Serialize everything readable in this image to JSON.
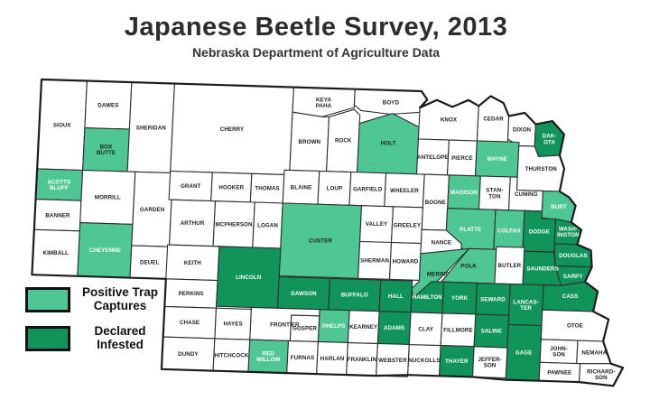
{
  "title": "Japanese Beetle Survey, 2013",
  "subtitle": "Nebraska Department of Agriculture Data",
  "colors": {
    "none": "#FFFFFF",
    "positive": "#4FC795",
    "infested": "#10945A",
    "border": "#2E2E2E",
    "state_border": "#1C1C1C",
    "label_dark": "#1D1D1D",
    "label_light": "#FFFFFF"
  },
  "legend": [
    {
      "key": "positive",
      "color": "#4FC795",
      "label_lines": [
        "Positive Trap",
        "Captures"
      ]
    },
    {
      "key": "infested",
      "color": "#10945A",
      "label_lines": [
        "Declared",
        "Infested"
      ]
    }
  ],
  "counties": [
    {
      "name": "Sioux",
      "lines": [
        "SIOUX"
      ],
      "status": "none",
      "text": "dark"
    },
    {
      "name": "Dawes",
      "lines": [
        "DAWES"
      ],
      "status": "none",
      "text": "dark"
    },
    {
      "name": "Box Butte",
      "lines": [
        "BOX",
        "BUTTE"
      ],
      "status": "positive",
      "text": "dark"
    },
    {
      "name": "Sheridan",
      "lines": [
        "SHERIDAN"
      ],
      "status": "none",
      "text": "dark"
    },
    {
      "name": "Scotts Bluff",
      "lines": [
        "SCOTTS",
        "BLUFF"
      ],
      "status": "positive",
      "text": "white"
    },
    {
      "name": "Banner",
      "lines": [
        "BANNER"
      ],
      "status": "none",
      "text": "dark"
    },
    {
      "name": "Kimball",
      "lines": [
        "KIMBALL"
      ],
      "status": "none",
      "text": "dark"
    },
    {
      "name": "Morrill",
      "lines": [
        "MORRILL"
      ],
      "status": "none",
      "text": "dark"
    },
    {
      "name": "Cheyenne",
      "lines": [
        "CHEYENNE"
      ],
      "status": "positive",
      "text": "white"
    },
    {
      "name": "Garden",
      "lines": [
        "GARDEN"
      ],
      "status": "none",
      "text": "dark"
    },
    {
      "name": "Deuel",
      "lines": [
        "DEUEL"
      ],
      "status": "none",
      "text": "dark"
    },
    {
      "name": "Cherry",
      "lines": [
        "CHERRY"
      ],
      "status": "none",
      "text": "dark"
    },
    {
      "name": "Keya Paha",
      "lines": [
        "KEYA",
        "PAHA"
      ],
      "status": "none",
      "text": "dark"
    },
    {
      "name": "Boyd",
      "lines": [
        "BOYD"
      ],
      "status": "none",
      "text": "dark"
    },
    {
      "name": "Brown",
      "lines": [
        "BROWN"
      ],
      "status": "none",
      "text": "dark"
    },
    {
      "name": "Rock",
      "lines": [
        "ROCK"
      ],
      "status": "none",
      "text": "dark"
    },
    {
      "name": "Holt",
      "lines": [
        "HOLT"
      ],
      "status": "positive",
      "text": "dark"
    },
    {
      "name": "Grant",
      "lines": [
        "GRANT"
      ],
      "status": "none",
      "text": "dark"
    },
    {
      "name": "Hooker",
      "lines": [
        "HOOKER"
      ],
      "status": "none",
      "text": "dark"
    },
    {
      "name": "Thomas",
      "lines": [
        "THOMAS"
      ],
      "status": "none",
      "text": "dark"
    },
    {
      "name": "Blaine",
      "lines": [
        "BLAINE"
      ],
      "status": "none",
      "text": "dark"
    },
    {
      "name": "Loup",
      "lines": [
        "LOUP"
      ],
      "status": "none",
      "text": "dark"
    },
    {
      "name": "Garfield",
      "lines": [
        "GARFIELD"
      ],
      "status": "none",
      "text": "dark"
    },
    {
      "name": "Wheeler",
      "lines": [
        "WHEELER"
      ],
      "status": "none",
      "text": "dark"
    },
    {
      "name": "Arthur",
      "lines": [
        "ARTHUR"
      ],
      "status": "none",
      "text": "dark"
    },
    {
      "name": "McPherson",
      "lines": [
        "MCPHERSON"
      ],
      "status": "none",
      "text": "dark"
    },
    {
      "name": "Logan",
      "lines": [
        "LOGAN"
      ],
      "status": "none",
      "text": "dark"
    },
    {
      "name": "Keith",
      "lines": [
        "KEITH"
      ],
      "status": "none",
      "text": "dark"
    },
    {
      "name": "Perkins",
      "lines": [
        "PERKINS"
      ],
      "status": "none",
      "text": "dark"
    },
    {
      "name": "Chase",
      "lines": [
        "CHASE"
      ],
      "status": "none",
      "text": "dark"
    },
    {
      "name": "Dundy",
      "lines": [
        "DUNDY"
      ],
      "status": "none",
      "text": "dark"
    },
    {
      "name": "Custer",
      "lines": [
        "CUSTER"
      ],
      "status": "positive",
      "text": "dark"
    },
    {
      "name": "Valley",
      "lines": [
        "VALLEY"
      ],
      "status": "none",
      "text": "dark"
    },
    {
      "name": "Greeley",
      "lines": [
        "GREELEY"
      ],
      "status": "none",
      "text": "dark"
    },
    {
      "name": "Sherman",
      "lines": [
        "SHERMAN"
      ],
      "status": "none",
      "text": "dark"
    },
    {
      "name": "Howard",
      "lines": [
        "HOWARD"
      ],
      "status": "none",
      "text": "dark"
    },
    {
      "name": "Knox",
      "lines": [
        "KNOX"
      ],
      "status": "none",
      "text": "dark"
    },
    {
      "name": "Cedar",
      "lines": [
        "CEDAR"
      ],
      "status": "none",
      "text": "dark"
    },
    {
      "name": "Dixon",
      "lines": [
        "DIXON"
      ],
      "status": "none",
      "text": "dark"
    },
    {
      "name": "Dakota",
      "lines": [
        "DAK-",
        "OTA"
      ],
      "status": "infested",
      "text": "white"
    },
    {
      "name": "Antelope",
      "lines": [
        "ANTELOPE"
      ],
      "status": "none",
      "text": "dark"
    },
    {
      "name": "Pierce",
      "lines": [
        "PIERCE"
      ],
      "status": "none",
      "text": "dark"
    },
    {
      "name": "Wayne",
      "lines": [
        "WAYNE"
      ],
      "status": "positive",
      "text": "white"
    },
    {
      "name": "Thurston",
      "lines": [
        "THURSTON"
      ],
      "status": "none",
      "text": "dark"
    },
    {
      "name": "Madison",
      "lines": [
        "MADISON"
      ],
      "status": "positive",
      "text": "white"
    },
    {
      "name": "Stanton",
      "lines": [
        "STAN-",
        "TON"
      ],
      "status": "none",
      "text": "dark"
    },
    {
      "name": "Cuming",
      "lines": [
        "CUMING"
      ],
      "status": "none",
      "text": "dark"
    },
    {
      "name": "Burt",
      "lines": [
        "BURT"
      ],
      "status": "positive",
      "text": "white"
    },
    {
      "name": "Boone",
      "lines": [
        "BOONE"
      ],
      "status": "none",
      "text": "dark"
    },
    {
      "name": "Platte",
      "lines": [
        "PLATTE"
      ],
      "status": "positive",
      "text": "white"
    },
    {
      "name": "Colfax",
      "lines": [
        "COLFAX"
      ],
      "status": "positive",
      "text": "white"
    },
    {
      "name": "Dodge",
      "lines": [
        "DODGE"
      ],
      "status": "infested",
      "text": "white"
    },
    {
      "name": "Washington",
      "lines": [
        "WASH-",
        "INGTON"
      ],
      "status": "infested",
      "text": "white"
    },
    {
      "name": "Douglas",
      "lines": [
        "DOUGLAS"
      ],
      "status": "infested",
      "text": "white"
    },
    {
      "name": "Sarpy",
      "lines": [
        "SARPY"
      ],
      "status": "infested",
      "text": "white"
    },
    {
      "name": "Saunders",
      "lines": [
        "SAUNDERS"
      ],
      "status": "infested",
      "text": "white"
    },
    {
      "name": "Nance",
      "lines": [
        "NANCE"
      ],
      "status": "none",
      "text": "dark"
    },
    {
      "name": "Merrick",
      "lines": [
        "MERRICK"
      ],
      "status": "positive",
      "text": "dark"
    },
    {
      "name": "Polk",
      "lines": [
        "POLK"
      ],
      "status": "positive",
      "text": "dark"
    },
    {
      "name": "Butler",
      "lines": [
        "BUTLER"
      ],
      "status": "none",
      "text": "dark"
    },
    {
      "name": "Lincoln",
      "lines": [
        "LINCOLN"
      ],
      "status": "infested",
      "text": "white"
    },
    {
      "name": "Dawson",
      "lines": [
        "DAWSON"
      ],
      "status": "infested",
      "text": "white"
    },
    {
      "name": "Buffalo",
      "lines": [
        "BUFFALO"
      ],
      "status": "infested",
      "text": "white"
    },
    {
      "name": "Hall",
      "lines": [
        "HALL"
      ],
      "status": "infested",
      "text": "white"
    },
    {
      "name": "Hamilton",
      "lines": [
        "HAMILTON"
      ],
      "status": "infested",
      "text": "white"
    },
    {
      "name": "York",
      "lines": [
        "YORK"
      ],
      "status": "infested",
      "text": "white"
    },
    {
      "name": "Seward",
      "lines": [
        "SEWARD"
      ],
      "status": "infested",
      "text": "white"
    },
    {
      "name": "Lancaster",
      "lines": [
        "LANCAS-",
        "TER"
      ],
      "status": "infested",
      "text": "white"
    },
    {
      "name": "Cass",
      "lines": [
        "CASS"
      ],
      "status": "infested",
      "text": "white"
    },
    {
      "name": "Otoe",
      "lines": [
        "OTOE"
      ],
      "status": "none",
      "text": "dark"
    },
    {
      "name": "Johnson",
      "lines": [
        "JOHN-",
        "SON"
      ],
      "status": "none",
      "text": "dark"
    },
    {
      "name": "Nemaha",
      "lines": [
        "NEMAHA"
      ],
      "status": "none",
      "text": "dark"
    },
    {
      "name": "Pawnee",
      "lines": [
        "PAWNEE"
      ],
      "status": "none",
      "text": "dark"
    },
    {
      "name": "Richardson",
      "lines": [
        "RICHARD-",
        "SON"
      ],
      "status": "none",
      "text": "dark"
    },
    {
      "name": "Gage",
      "lines": [
        "GAGE"
      ],
      "status": "infested",
      "text": "white"
    },
    {
      "name": "Jefferson",
      "lines": [
        "JEFFER-",
        "SON"
      ],
      "status": "none",
      "text": "dark"
    },
    {
      "name": "Saline",
      "lines": [
        "SALINE"
      ],
      "status": "infested",
      "text": "white"
    },
    {
      "name": "Fillmore",
      "lines": [
        "FILLMORE"
      ],
      "status": "none",
      "text": "dark"
    },
    {
      "name": "Thayer",
      "lines": [
        "THAYER"
      ],
      "status": "infested",
      "text": "white"
    },
    {
      "name": "Nuckolls",
      "lines": [
        "NUCKOLLS"
      ],
      "status": "none",
      "text": "dark"
    },
    {
      "name": "Clay",
      "lines": [
        "CLAY"
      ],
      "status": "none",
      "text": "dark"
    },
    {
      "name": "Adams",
      "lines": [
        "ADAMS"
      ],
      "status": "infested",
      "text": "white"
    },
    {
      "name": "Webster",
      "lines": [
        "WEBSTER"
      ],
      "status": "none",
      "text": "dark"
    },
    {
      "name": "Franklin",
      "lines": [
        "FRANKLIN"
      ],
      "status": "none",
      "text": "dark"
    },
    {
      "name": "Kearney",
      "lines": [
        "KEARNEY"
      ],
      "status": "none",
      "text": "dark"
    },
    {
      "name": "Phelps",
      "lines": [
        "PHELPS"
      ],
      "status": "positive",
      "text": "white"
    },
    {
      "name": "Harlan",
      "lines": [
        "HARLAN"
      ],
      "status": "none",
      "text": "dark"
    },
    {
      "name": "Gosper",
      "lines": [
        "GOSPER"
      ],
      "status": "none",
      "text": "dark"
    },
    {
      "name": "Furnas",
      "lines": [
        "FURNAS"
      ],
      "status": "none",
      "text": "dark"
    },
    {
      "name": "Frontier",
      "lines": [
        "FRONTIER"
      ],
      "status": "none",
      "text": "dark"
    },
    {
      "name": "Red Willow",
      "lines": [
        "RED",
        "WILLOW"
      ],
      "status": "positive",
      "text": "white"
    },
    {
      "name": "Hitchcock",
      "lines": [
        "HITCHCOCK"
      ],
      "status": "none",
      "text": "dark"
    },
    {
      "name": "Hayes",
      "lines": [
        "HAYES"
      ],
      "status": "none",
      "text": "dark"
    }
  ]
}
